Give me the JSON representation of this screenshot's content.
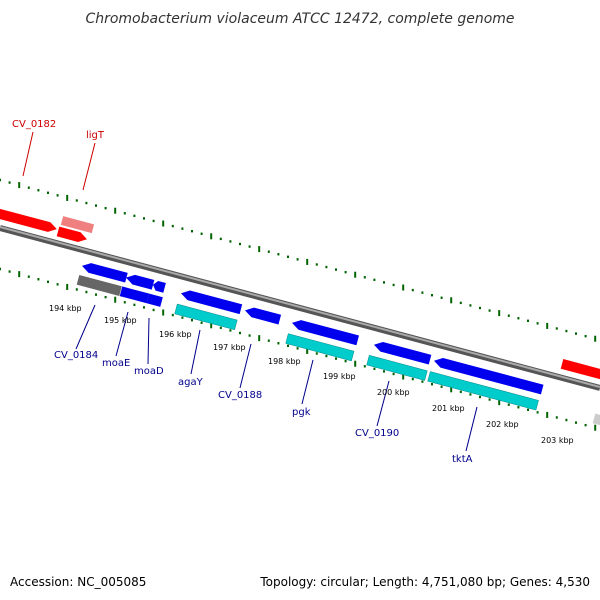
{
  "title": "Chromobacterium violaceum ATCC 12472, complete genome",
  "footer": {
    "accession": "Accession: NC_005085",
    "summary": "Topology: circular; Length: 4,751,080 bp; Genes: 4,530"
  },
  "colors": {
    "forward_cds": "#ff0000",
    "forward_gene_light": "#f08080",
    "reverse_cds": "#0000ee",
    "reverse_gene": "#00cccc",
    "pseudo": "#666666",
    "backbone": "#888888",
    "ticks": "#006400",
    "forward_label": "#cc0000",
    "reverse_label": "#00008b"
  },
  "ruler": {
    "labels": [
      "194 kbp",
      "195 kbp",
      "196 kbp",
      "197 kbp",
      "198 kbp",
      "199 kbp",
      "200 kbp",
      "201 kbp",
      "202 kbp",
      "203 kbp"
    ]
  },
  "gene_labels": [
    {
      "text": "CV_0182",
      "strand": "forward"
    },
    {
      "text": "ligT",
      "strand": "forward"
    },
    {
      "text": "CV_0184",
      "strand": "reverse"
    },
    {
      "text": "moaE",
      "strand": "reverse"
    },
    {
      "text": "moaD",
      "strand": "reverse"
    },
    {
      "text": "agaY",
      "strand": "reverse"
    },
    {
      "text": "CV_0188",
      "strand": "reverse"
    },
    {
      "text": "pgk",
      "strand": "reverse"
    },
    {
      "text": "CV_0190",
      "strand": "reverse"
    },
    {
      "text": "tktA",
      "strand": "reverse"
    }
  ]
}
